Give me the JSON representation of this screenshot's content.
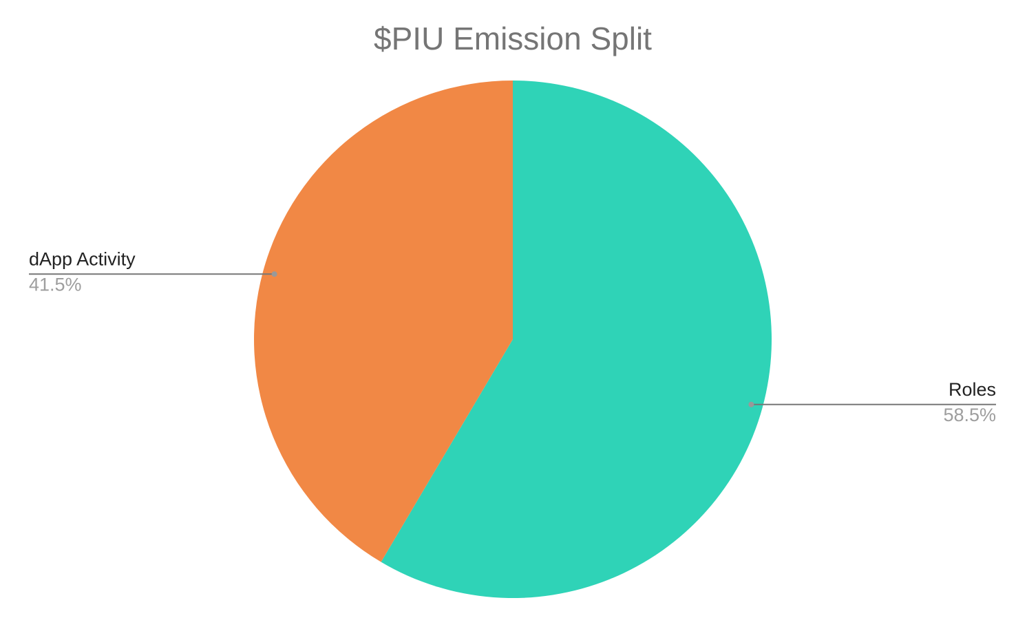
{
  "chart_data": {
    "type": "pie",
    "title": "$PIU Emission Split",
    "categories": [
      "Roles",
      "dApp Activity"
    ],
    "values": [
      58.5,
      41.5
    ],
    "value_labels": [
      "58.5%",
      "41.5%"
    ],
    "colors": [
      "#2fd3b7",
      "#f18845"
    ]
  }
}
